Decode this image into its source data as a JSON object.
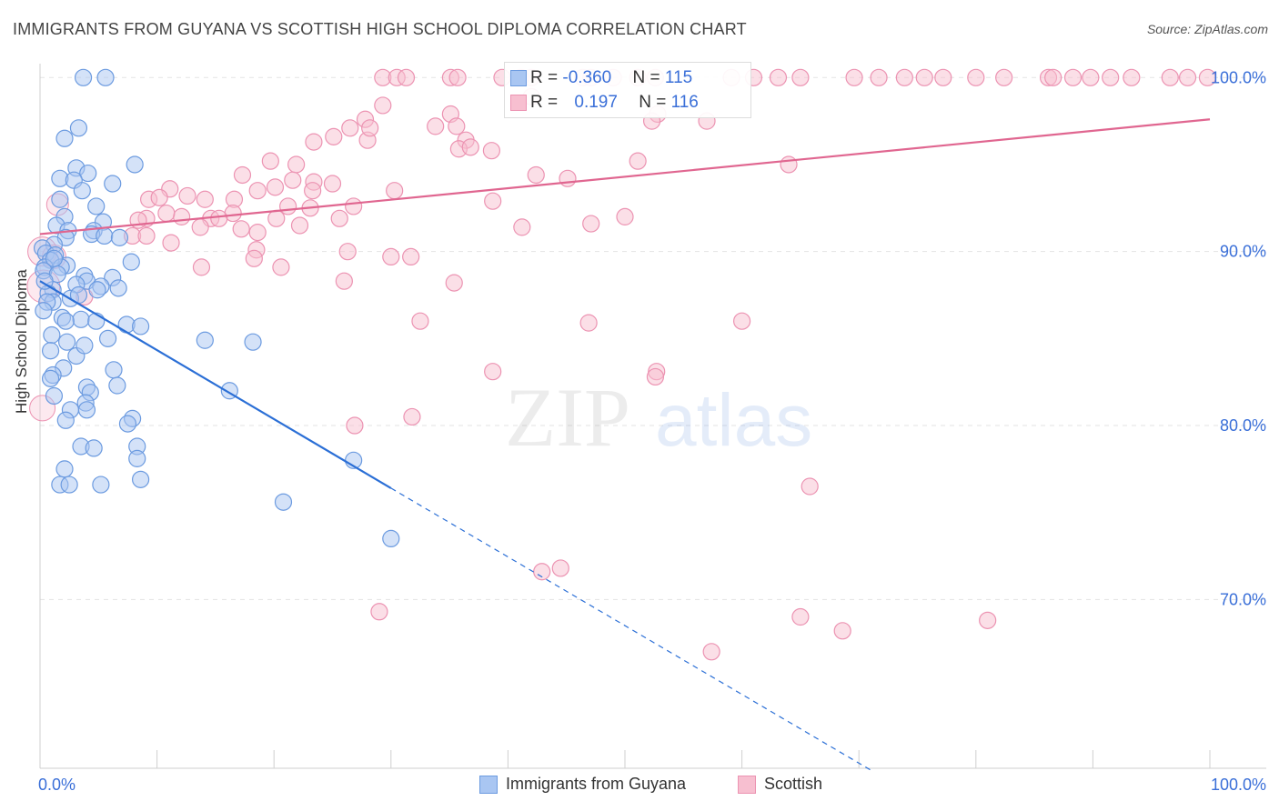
{
  "header": {
    "title": "IMMIGRANTS FROM GUYANA VS SCOTTISH HIGH SCHOOL DIPLOMA CORRELATION CHART",
    "source": "Source: ZipAtlas.com"
  },
  "legend_top": {
    "rows": [
      {
        "r_label": "R = ",
        "r_value": "-0.360",
        "n_label": "N = ",
        "n_value": "115"
      },
      {
        "r_label": "R = ",
        "r_value": "0.197",
        "n_label": "N = ",
        "n_value": "116"
      }
    ]
  },
  "legend_bottom": {
    "items": [
      "Immigrants from Guyana",
      "Scottish"
    ]
  },
  "watermark": {
    "zip": "ZIP",
    "atlas": "atlas"
  },
  "colors": {
    "blue_fill": "#a9c6f2",
    "blue_stroke": "#6c9be0",
    "blue_line": "#2b6fd6",
    "pink_fill": "#f7bfd0",
    "pink_stroke": "#ec93b2",
    "pink_line": "#e06690",
    "tick_text": "#3a6fd8"
  },
  "chart_data": {
    "type": "scatter",
    "title": "IMMIGRANTS FROM GUYANA VS SCOTTISH HIGH SCHOOL DIPLOMA CORRELATION CHART",
    "xlabel": "",
    "ylabel": "High School Diploma",
    "xlim": [
      0,
      100
    ],
    "ylim": [
      60.3,
      100.8
    ],
    "x_ticks": [
      "0.0%",
      "100.0%"
    ],
    "y_ticks": [
      {
        "v": 100,
        "label": "100.0%"
      },
      {
        "v": 90,
        "label": "90.0%"
      },
      {
        "v": 80,
        "label": "80.0%"
      },
      {
        "v": 70,
        "label": "70.0%"
      }
    ],
    "grid": true,
    "legend_position": "top-center",
    "series": [
      {
        "name": "Immigrants from Guyana",
        "r": -0.36,
        "n": 115,
        "trend": {
          "x0": 0,
          "y0": 88.3,
          "x1": 30,
          "y1": 76.4,
          "dashed_to_x": 71,
          "dashed_to_y": 60.2
        },
        "points": [
          [
            3.7,
            100
          ],
          [
            5.6,
            100
          ],
          [
            2.1,
            96.5
          ],
          [
            3.3,
            97.1
          ],
          [
            8.1,
            95
          ],
          [
            3.1,
            94.8
          ],
          [
            4.1,
            94.5
          ],
          [
            1.7,
            94.2
          ],
          [
            2.9,
            94.1
          ],
          [
            6.2,
            93.9
          ],
          [
            3.6,
            93.5
          ],
          [
            1.7,
            93
          ],
          [
            4.8,
            92.6
          ],
          [
            2.1,
            92
          ],
          [
            1.4,
            91.5
          ],
          [
            5.4,
            91.7
          ],
          [
            4.6,
            91.2
          ],
          [
            2.4,
            91.2
          ],
          [
            4.4,
            91
          ],
          [
            5.5,
            90.9
          ],
          [
            6.8,
            90.8
          ],
          [
            2.2,
            90.8
          ],
          [
            1.2,
            90.4
          ],
          [
            0.2,
            90.2
          ],
          [
            0.5,
            89.9
          ],
          [
            1.3,
            89.8
          ],
          [
            0.9,
            89.5
          ],
          [
            7.8,
            89.4
          ],
          [
            2.3,
            89.2
          ],
          [
            0.4,
            89.1
          ],
          [
            1.8,
            89.1
          ],
          [
            0.3,
            88.9
          ],
          [
            1.5,
            88.7
          ],
          [
            3.8,
            88.6
          ],
          [
            6.2,
            88.5
          ],
          [
            4.0,
            88.3
          ],
          [
            3.1,
            88.1
          ],
          [
            5.2,
            88.0
          ],
          [
            1.1,
            87.8
          ],
          [
            0.7,
            87.6
          ],
          [
            2.6,
            87.3
          ],
          [
            1.1,
            87.1
          ],
          [
            3.3,
            87.5
          ],
          [
            0.6,
            87.1
          ],
          [
            6.7,
            87.9
          ],
          [
            4.9,
            87.8
          ],
          [
            0.3,
            86.6
          ],
          [
            1.9,
            86.2
          ],
          [
            3.5,
            86.1
          ],
          [
            2.2,
            86.0
          ],
          [
            4.8,
            86.0
          ],
          [
            7.4,
            85.8
          ],
          [
            8.6,
            85.7
          ],
          [
            1.0,
            85.2
          ],
          [
            2.3,
            84.8
          ],
          [
            5.8,
            85.0
          ],
          [
            0.9,
            84.3
          ],
          [
            3.1,
            84.0
          ],
          [
            3.8,
            84.6
          ],
          [
            14.1,
            84.9
          ],
          [
            18.2,
            84.8
          ],
          [
            2.0,
            83.3
          ],
          [
            6.3,
            83.2
          ],
          [
            1.1,
            82.9
          ],
          [
            0.9,
            82.7
          ],
          [
            4.0,
            82.2
          ],
          [
            6.6,
            82.3
          ],
          [
            4.3,
            81.9
          ],
          [
            16.2,
            82.0
          ],
          [
            1.2,
            81.7
          ],
          [
            2.6,
            80.9
          ],
          [
            3.9,
            81.3
          ],
          [
            4.0,
            80.9
          ],
          [
            7.9,
            80.4
          ],
          [
            2.2,
            80.3
          ],
          [
            7.5,
            80.1
          ],
          [
            3.5,
            78.8
          ],
          [
            4.6,
            78.7
          ],
          [
            8.3,
            78.8
          ],
          [
            8.3,
            78.1
          ],
          [
            26.8,
            78.0
          ],
          [
            2.1,
            77.5
          ],
          [
            1.7,
            76.6
          ],
          [
            2.5,
            76.6
          ],
          [
            5.2,
            76.6
          ],
          [
            8.6,
            76.9
          ],
          [
            20.8,
            75.6
          ],
          [
            30.0,
            73.5
          ],
          [
            0.4,
            88.3
          ],
          [
            1.2,
            89.6
          ]
        ]
      },
      {
        "name": "Scottish",
        "r": 0.197,
        "n": 116,
        "trend": {
          "x0": 0,
          "y0": 91.0,
          "x1": 100,
          "y1": 97.6
        },
        "points": [
          [
            29.3,
            100
          ],
          [
            30.5,
            100
          ],
          [
            31.3,
            100
          ],
          [
            35.1,
            100
          ],
          [
            35.7,
            100
          ],
          [
            39.5,
            100
          ],
          [
            41.1,
            100
          ],
          [
            42.0,
            100
          ],
          [
            46.4,
            100
          ],
          [
            47.1,
            100
          ],
          [
            49.0,
            100
          ],
          [
            51.1,
            100
          ],
          [
            52.6,
            100
          ],
          [
            59.1,
            100
          ],
          [
            61.0,
            100
          ],
          [
            63.1,
            100
          ],
          [
            65.0,
            100
          ],
          [
            69.6,
            100
          ],
          [
            71.7,
            100
          ],
          [
            73.9,
            100
          ],
          [
            75.6,
            100
          ],
          [
            77.2,
            100
          ],
          [
            80.0,
            100
          ],
          [
            82.4,
            100
          ],
          [
            86.2,
            100
          ],
          [
            86.6,
            100
          ],
          [
            88.3,
            100
          ],
          [
            89.8,
            100
          ],
          [
            91.5,
            100
          ],
          [
            93.3,
            100
          ],
          [
            96.6,
            100
          ],
          [
            98.1,
            100
          ],
          [
            99.8,
            100
          ],
          [
            52.8,
            97.9
          ],
          [
            52.3,
            97.5
          ],
          [
            42.0,
            98.9
          ],
          [
            29.3,
            98.4
          ],
          [
            27.8,
            97.6
          ],
          [
            26.5,
            97.1
          ],
          [
            28.0,
            96.4
          ],
          [
            25.1,
            96.6
          ],
          [
            23.4,
            96.3
          ],
          [
            28.2,
            97.1
          ],
          [
            33.8,
            97.2
          ],
          [
            35.1,
            97.9
          ],
          [
            36.4,
            96.4
          ],
          [
            35.6,
            97.2
          ],
          [
            38.6,
            95.8
          ],
          [
            21.9,
            95.0
          ],
          [
            19.7,
            95.2
          ],
          [
            35.8,
            95.9
          ],
          [
            36.8,
            96.0
          ],
          [
            45.1,
            94.2
          ],
          [
            51.1,
            95.2
          ],
          [
            42.4,
            94.4
          ],
          [
            17.3,
            94.4
          ],
          [
            25.0,
            93.9
          ],
          [
            23.4,
            94.0
          ],
          [
            21.6,
            94.1
          ],
          [
            20.1,
            93.7
          ],
          [
            18.6,
            93.5
          ],
          [
            23.3,
            93.5
          ],
          [
            11.1,
            93.6
          ],
          [
            14.1,
            93.0
          ],
          [
            16.6,
            93.0
          ],
          [
            21.2,
            92.6
          ],
          [
            23.1,
            92.5
          ],
          [
            9.3,
            93.0
          ],
          [
            10.2,
            93.1
          ],
          [
            12.6,
            93.2
          ],
          [
            30.3,
            93.5
          ],
          [
            26.8,
            92.6
          ],
          [
            38.7,
            92.9
          ],
          [
            25.6,
            91.9
          ],
          [
            12.1,
            92.0
          ],
          [
            16.5,
            92.2
          ],
          [
            14.6,
            91.9
          ],
          [
            13.7,
            91.4
          ],
          [
            15.3,
            91.9
          ],
          [
            17.2,
            91.3
          ],
          [
            18.6,
            91.1
          ],
          [
            20.2,
            91.9
          ],
          [
            22.2,
            91.5
          ],
          [
            9.1,
            91.9
          ],
          [
            10.8,
            92.2
          ],
          [
            8.4,
            91.8
          ],
          [
            7.9,
            90.9
          ],
          [
            9.1,
            90.9
          ],
          [
            11.2,
            90.5
          ],
          [
            18.5,
            90.1
          ],
          [
            26.3,
            90.0
          ],
          [
            30.0,
            89.7
          ],
          [
            31.7,
            89.7
          ],
          [
            13.8,
            89.1
          ],
          [
            18.3,
            89.6
          ],
          [
            20.6,
            89.1
          ],
          [
            26.0,
            88.3
          ],
          [
            35.4,
            88.2
          ],
          [
            3.8,
            87.4
          ],
          [
            46.9,
            85.9
          ],
          [
            32.5,
            86.0
          ],
          [
            52.7,
            83.1
          ],
          [
            52.6,
            82.8
          ],
          [
            38.7,
            83.1
          ],
          [
            31.8,
            80.5
          ],
          [
            26.9,
            80.0
          ],
          [
            60.0,
            86.0
          ],
          [
            41.2,
            91.4
          ],
          [
            47.1,
            91.6
          ],
          [
            50.0,
            92.0
          ],
          [
            65.8,
            76.5
          ],
          [
            42.9,
            71.6
          ],
          [
            44.5,
            71.8
          ],
          [
            29.0,
            69.3
          ],
          [
            65.0,
            69.0
          ],
          [
            57.4,
            67.0
          ],
          [
            68.6,
            68.2
          ],
          [
            81.0,
            68.8
          ],
          [
            57.0,
            97.5
          ],
          [
            64.0,
            95.0
          ]
        ]
      }
    ]
  }
}
